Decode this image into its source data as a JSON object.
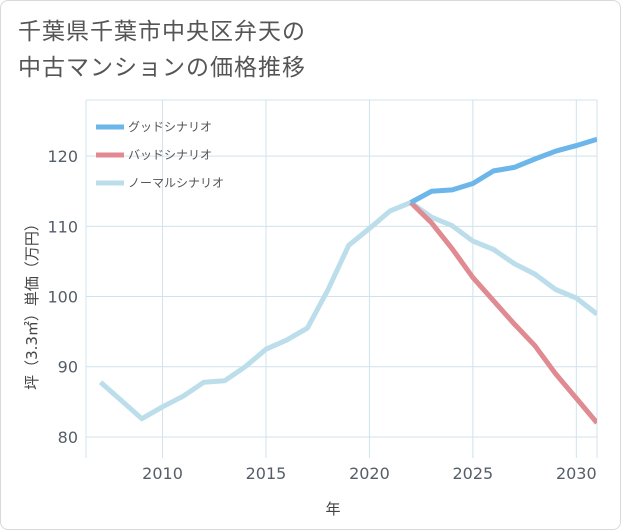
{
  "title": {
    "line1": "千葉県千葉市中央区弁天の",
    "line2": "中古マンションの価格推移"
  },
  "colors": {
    "good": "#6cb6ea",
    "bad": "#e08a91",
    "normal": "#bcdeeb",
    "grid": "#cfe3ee"
  },
  "chart_data": {
    "type": "line",
    "xlabel": "年",
    "ylabel": "坪（3.3㎡）単価（万円）",
    "xlim": [
      2006.3,
      2031
    ],
    "ylim": [
      77,
      128
    ],
    "xticks": [
      2010,
      2015,
      2020,
      2025,
      2030
    ],
    "yticks": [
      80,
      90,
      100,
      110,
      120
    ],
    "legend_position": "top-left",
    "series": [
      {
        "name": "グッドシナリオ",
        "key": "good",
        "x": [
          2022,
          2023,
          2024,
          2025,
          2026,
          2027,
          2028,
          2029,
          2030,
          2031
        ],
        "values": [
          113.4,
          115.0,
          115.2,
          116.1,
          117.9,
          118.4,
          119.6,
          120.7,
          121.5,
          122.4
        ]
      },
      {
        "name": "バッドシナリオ",
        "key": "bad",
        "x": [
          2022,
          2023,
          2024,
          2025,
          2026,
          2027,
          2028,
          2029,
          2030,
          2031
        ],
        "values": [
          113.4,
          110.5,
          106.8,
          102.7,
          99.4,
          96.1,
          93.0,
          89.0,
          85.5,
          82.0
        ]
      },
      {
        "name": "ノーマルシナリオ",
        "key": "normal",
        "x": [
          2007,
          2008,
          2009,
          2010,
          2011,
          2012,
          2013,
          2014,
          2015,
          2016,
          2017,
          2018,
          2019,
          2020,
          2021,
          2022,
          2023,
          2024,
          2025,
          2026,
          2027,
          2028,
          2029,
          2030,
          2031
        ],
        "values": [
          87.8,
          85.2,
          82.6,
          84.3,
          85.8,
          87.8,
          88.0,
          90.0,
          92.5,
          93.8,
          95.5,
          101.0,
          107.3,
          109.7,
          112.2,
          113.4,
          111.3,
          110.1,
          107.9,
          106.7,
          104.7,
          103.2,
          101.0,
          99.8,
          97.5
        ]
      }
    ]
  }
}
